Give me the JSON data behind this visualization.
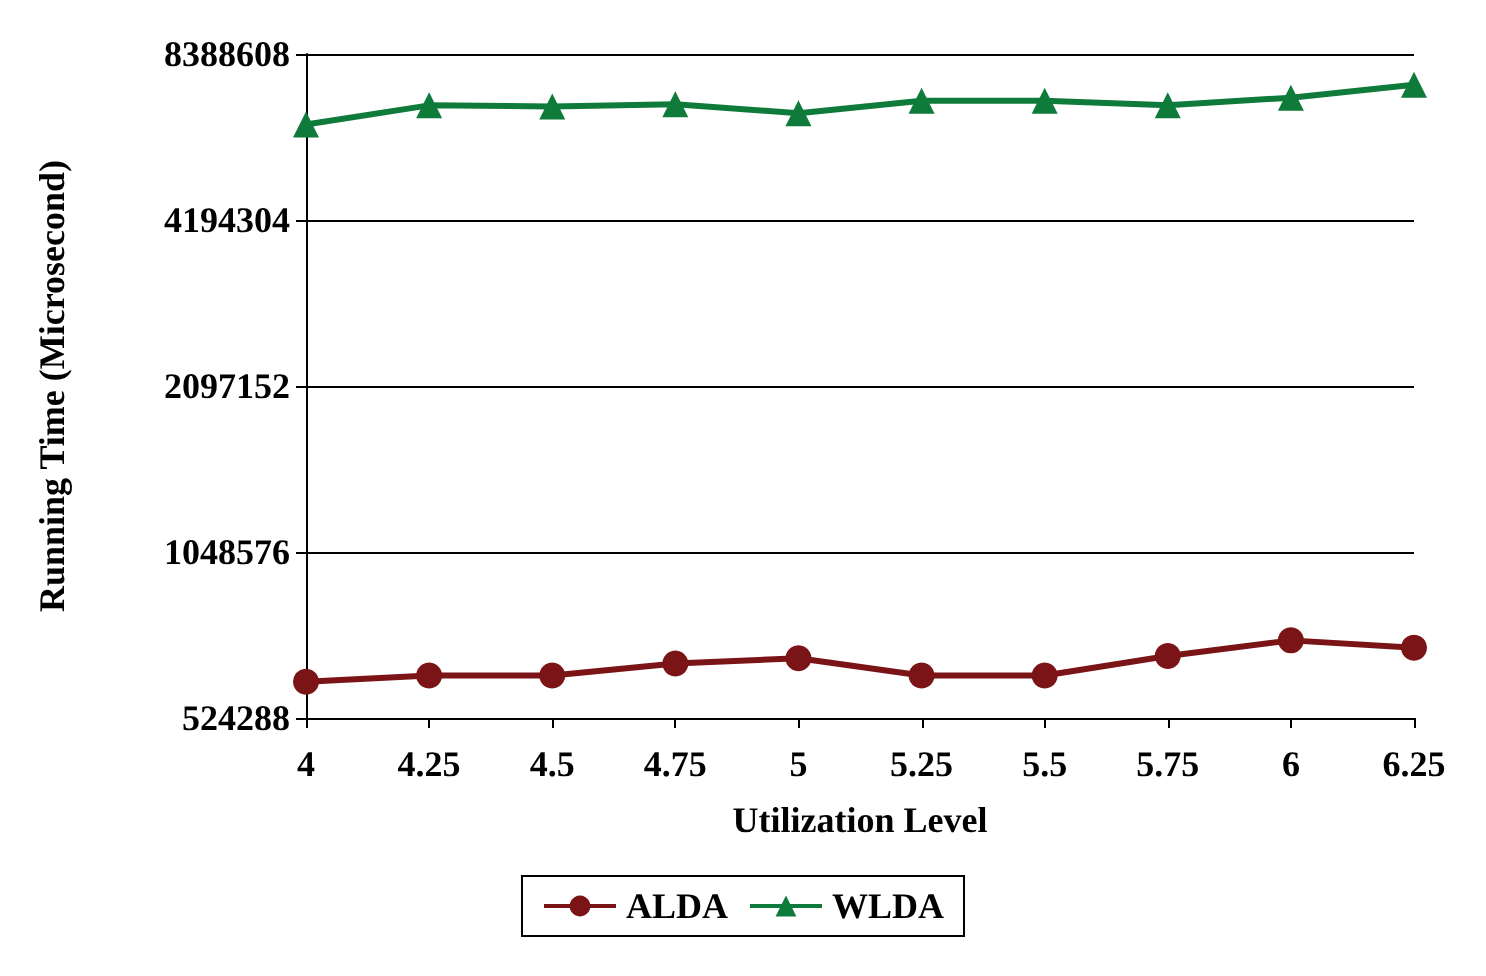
{
  "chart_data": {
    "type": "line",
    "xlabel": "Utilization Level",
    "ylabel": "Running Time (Microsecond)",
    "categories": [
      "4",
      "4.25",
      "4.5",
      "4.75",
      "5",
      "5.25",
      "5.5",
      "5.75",
      "6",
      "6.25"
    ],
    "series": [
      {
        "name": "ALDA",
        "color": "#7b1416",
        "marker": "circle",
        "values": [
          610000,
          626000,
          626000,
          658000,
          673000,
          626000,
          626000,
          679000,
          725000,
          703000
        ]
      },
      {
        "name": "WLDA",
        "color": "#0f7b3a",
        "marker": "triangle",
        "values": [
          6250000,
          6770000,
          6740000,
          6800000,
          6550000,
          6900000,
          6900000,
          6770000,
          6990000,
          7380000
        ]
      }
    ],
    "log": "y",
    "ylim": [
      524288,
      8388608
    ],
    "yticks": [
      524288,
      1048576,
      2097152,
      4194304,
      8388608
    ],
    "grid": "y",
    "legend": "bottom",
    "line_style": "solid"
  }
}
